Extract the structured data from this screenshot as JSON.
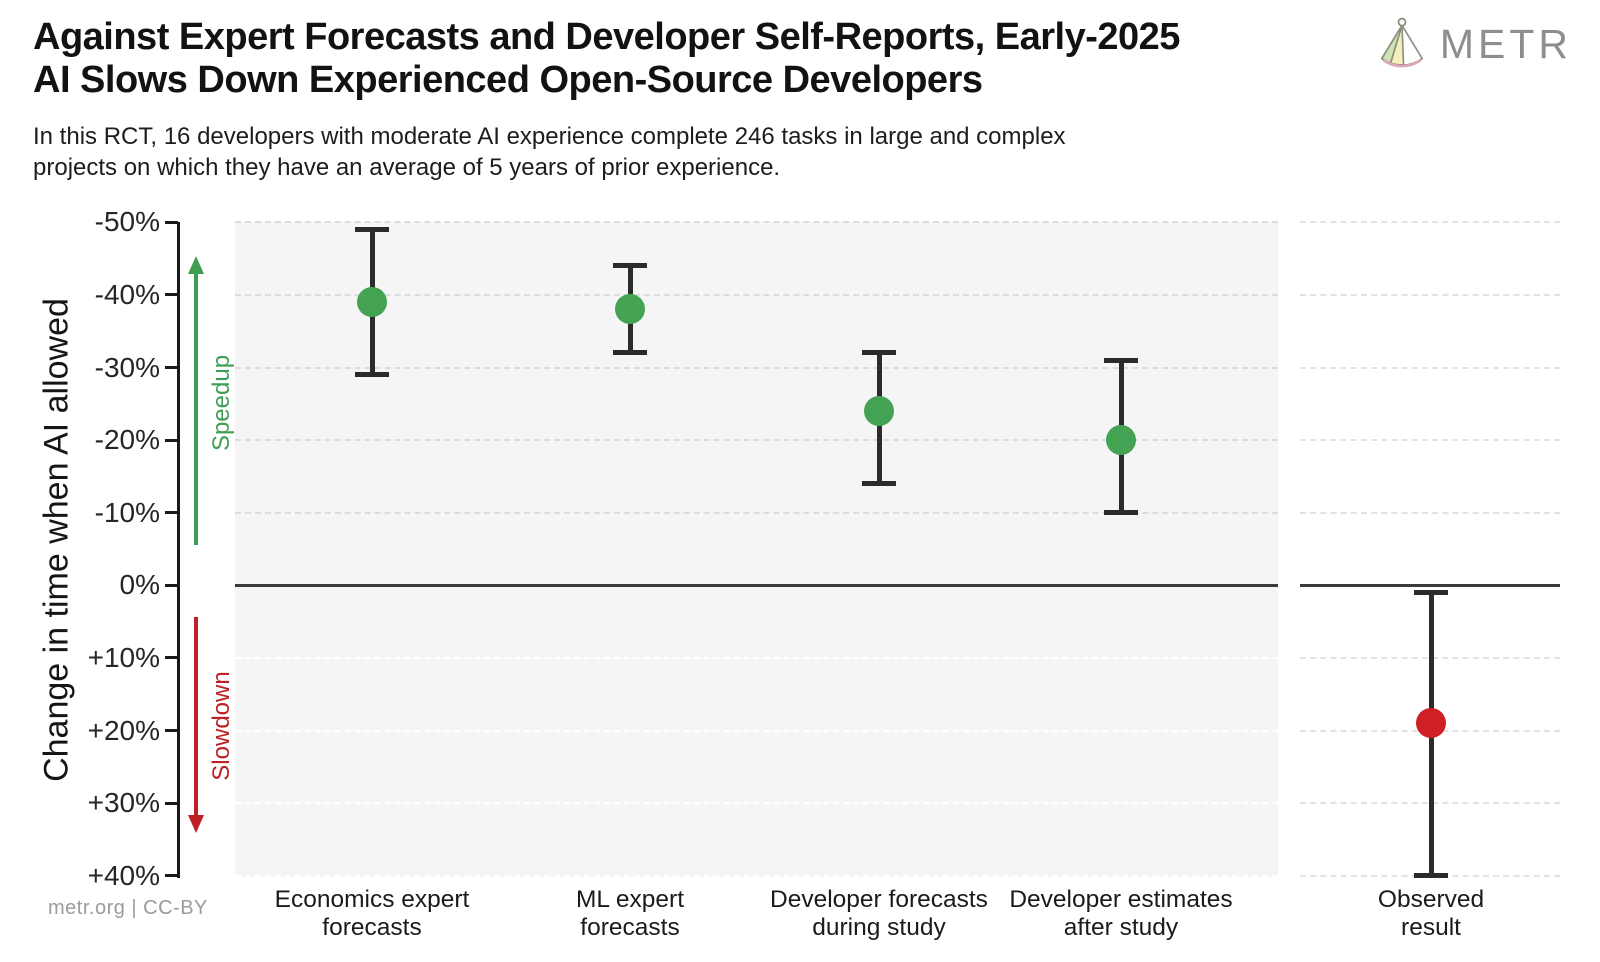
{
  "header": {
    "title_line1": "Against Expert Forecasts and Developer Self-Reports, Early-2025",
    "title_line2": "AI Slows Down Experienced Open-Source Developers",
    "subtitle_line1": "In this RCT, 16 developers with moderate AI experience complete 246 tasks in large and complex",
    "subtitle_line2": "projects on which they have an average of 5 years of prior experience.",
    "logo_text": "METR"
  },
  "footer": {
    "credit": "metr.org  |  CC-BY"
  },
  "chart_data": {
    "type": "scatter",
    "title": "Against Expert Forecasts and Developer Self-Reports, Early-2025 AI Slows Down Experienced Open-Source Developers",
    "ylabel": "Change in time when AI allowed",
    "ylim_top_to_bottom": [
      -50,
      40
    ],
    "grid": "horizontal dashed, solid line at 0%",
    "legend_position": "none",
    "yticks": [
      {
        "value": -50,
        "label": "-50%"
      },
      {
        "value": -40,
        "label": "-40%"
      },
      {
        "value": -30,
        "label": "-30%"
      },
      {
        "value": -20,
        "label": "-20%"
      },
      {
        "value": -10,
        "label": "-10%"
      },
      {
        "value": 0,
        "label": "0%"
      },
      {
        "value": 10,
        "label": "+10%"
      },
      {
        "value": 20,
        "label": "+20%"
      },
      {
        "value": 30,
        "label": "+30%"
      },
      {
        "value": 40,
        "label": "+40%"
      }
    ],
    "annotations": {
      "speedup_label": "Speedup",
      "speedup_color": "#3f9e51",
      "slowdown_label": "Slowdown",
      "slowdown_color": "#bf2026"
    },
    "series": [
      {
        "category": "Economics expert forecasts",
        "label_lines": [
          "Economics expert",
          "forecasts"
        ],
        "mean_pct": -39,
        "ci_pct": [
          -49,
          -29
        ],
        "color": "#43a353",
        "panel": "main"
      },
      {
        "category": "ML expert forecasts",
        "label_lines": [
          "ML expert",
          "forecasts"
        ],
        "mean_pct": -38,
        "ci_pct": [
          -44,
          -32
        ],
        "color": "#43a353",
        "panel": "main"
      },
      {
        "category": "Developer forecasts during study",
        "label_lines": [
          "Developer forecasts",
          "during study"
        ],
        "mean_pct": -24,
        "ci_pct": [
          -32,
          -14
        ],
        "color": "#43a353",
        "panel": "main"
      },
      {
        "category": "Developer estimates after study",
        "label_lines": [
          "Developer estimates",
          "after study"
        ],
        "mean_pct": -20,
        "ci_pct": [
          -31,
          -10
        ],
        "color": "#43a353",
        "panel": "main"
      },
      {
        "category": "Observed result",
        "label_lines": [
          "Observed",
          "result"
        ],
        "mean_pct": 19,
        "ci_pct": [
          1,
          40
        ],
        "color": "#cf2026",
        "panel": "observed"
      }
    ]
  }
}
